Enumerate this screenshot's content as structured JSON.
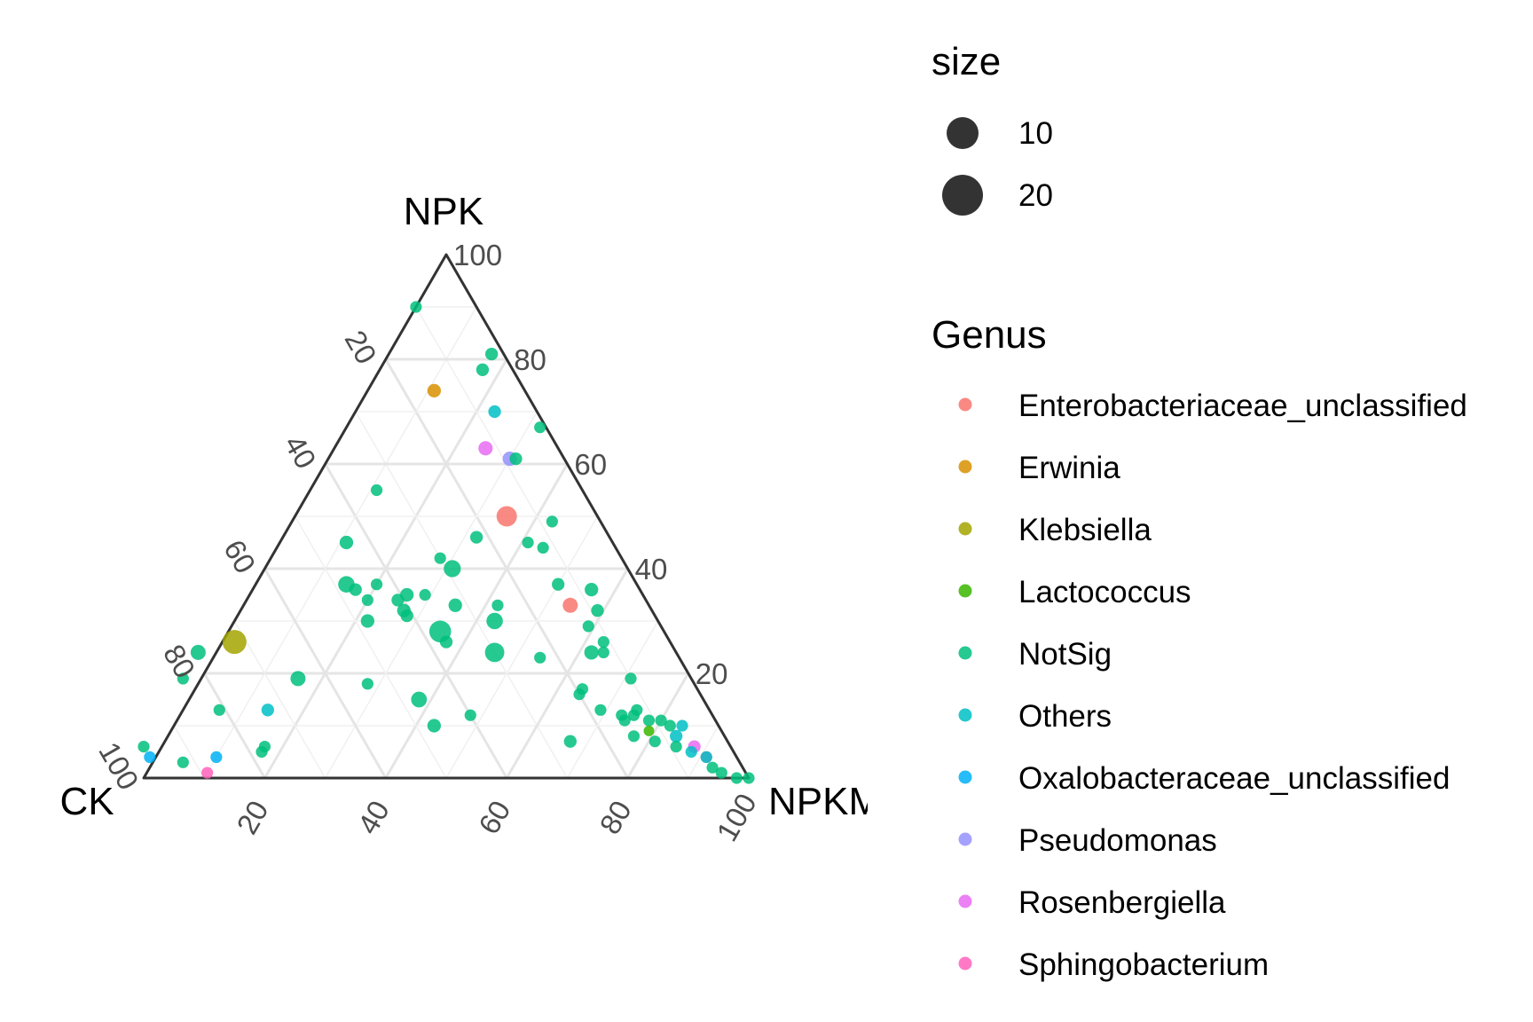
{
  "chart_data": {
    "type": "scatter",
    "subtype": "ternary",
    "axes": {
      "top": "NPK",
      "left": "CK",
      "right": "NPKM"
    },
    "axis_range": [
      0,
      100
    ],
    "ticks": [
      20,
      40,
      60,
      80,
      100
    ],
    "grid": true,
    "legend": {
      "position": "right",
      "size_title": "size",
      "size_entries": [
        {
          "label": "10",
          "value": 10
        },
        {
          "label": "20",
          "value": 20
        }
      ],
      "color_title": "Genus",
      "genera": [
        {
          "name": "Enterobacteriaceae_unclassified",
          "color": "#F8766D"
        },
        {
          "name": "Erwinia",
          "color": "#D89000"
        },
        {
          "name": "Klebsiella",
          "color": "#A3A500"
        },
        {
          "name": "Lactococcus",
          "color": "#39B600"
        },
        {
          "name": "NotSig",
          "color": "#00BF7D"
        },
        {
          "name": "Others",
          "color": "#00BFC4"
        },
        {
          "name": "Oxalobacteraceae_unclassified",
          "color": "#00B0F6"
        },
        {
          "name": "Pseudomonas",
          "color": "#9590FF"
        },
        {
          "name": "Rosenbergiella",
          "color": "#E76BF3"
        },
        {
          "name": "Sphingobacterium",
          "color": "#FF62BC"
        }
      ]
    },
    "points": [
      {
        "genus": "NotSig",
        "ck": 10,
        "npk": 90,
        "npkm": 0,
        "size": 4
      },
      {
        "genus": "NotSig",
        "ck": 2,
        "npk": 81,
        "npkm": 17,
        "size": 5
      },
      {
        "genus": "NotSig",
        "ck": 5,
        "npk": 78,
        "npkm": 17,
        "size": 5
      },
      {
        "genus": "Erwinia",
        "ck": 15,
        "npk": 74,
        "npkm": 11,
        "size": 6
      },
      {
        "genus": "Others",
        "ck": 7,
        "npk": 70,
        "npkm": 23,
        "size": 5
      },
      {
        "genus": "NotSig",
        "ck": 1,
        "npk": 67,
        "npkm": 32,
        "size": 4
      },
      {
        "genus": "Rosenbergiella",
        "ck": 12,
        "npk": 63,
        "npkm": 25,
        "size": 7
      },
      {
        "genus": "Pseudomonas",
        "ck": 9,
        "npk": 61,
        "npkm": 30,
        "size": 7
      },
      {
        "genus": "NotSig",
        "ck": 8,
        "npk": 61,
        "npkm": 31,
        "size": 5
      },
      {
        "genus": "NotSig",
        "ck": 34,
        "npk": 55,
        "npkm": 11,
        "size": 4
      },
      {
        "genus": "Enterobacteriaceae_unclassified",
        "ck": 15,
        "npk": 50,
        "npkm": 35,
        "size": 17
      },
      {
        "genus": "NotSig",
        "ck": 8,
        "npk": 49,
        "npkm": 43,
        "size": 4
      },
      {
        "genus": "NotSig",
        "ck": 22,
        "npk": 46,
        "npkm": 32,
        "size": 5
      },
      {
        "genus": "NotSig",
        "ck": 44,
        "npk": 45,
        "npkm": 11,
        "size": 6
      },
      {
        "genus": "NotSig",
        "ck": 14,
        "npk": 45,
        "npkm": 41,
        "size": 4
      },
      {
        "genus": "NotSig",
        "ck": 12,
        "npk": 44,
        "npkm": 44,
        "size": 4
      },
      {
        "genus": "NotSig",
        "ck": 30,
        "npk": 42,
        "npkm": 28,
        "size": 4
      },
      {
        "genus": "NotSig",
        "ck": 29,
        "npk": 40,
        "npkm": 31,
        "size": 11
      },
      {
        "genus": "NotSig",
        "ck": 13,
        "npk": 37,
        "npkm": 50,
        "size": 5
      },
      {
        "genus": "NotSig",
        "ck": 48,
        "npk": 37,
        "npkm": 15,
        "size": 10
      },
      {
        "genus": "NotSig",
        "ck": 43,
        "npk": 37,
        "npkm": 20,
        "size": 4
      },
      {
        "genus": "NotSig",
        "ck": 8,
        "npk": 36,
        "npkm": 56,
        "size": 6
      },
      {
        "genus": "NotSig",
        "ck": 47,
        "npk": 36,
        "npkm": 17,
        "size": 5
      },
      {
        "genus": "NotSig",
        "ck": 39,
        "npk": 35,
        "npkm": 26,
        "size": 6
      },
      {
        "genus": "NotSig",
        "ck": 36,
        "npk": 35,
        "npkm": 29,
        "size": 4
      },
      {
        "genus": "NotSig",
        "ck": 41,
        "npk": 34,
        "npkm": 25,
        "size": 5
      },
      {
        "genus": "NotSig",
        "ck": 46,
        "npk": 34,
        "npkm": 20,
        "size": 4
      },
      {
        "genus": "NotSig",
        "ck": 32,
        "npk": 33,
        "npkm": 35,
        "size": 6
      },
      {
        "genus": "NotSig",
        "ck": 25,
        "npk": 33,
        "npkm": 42,
        "size": 4
      },
      {
        "genus": "NotSig",
        "ck": 41,
        "npk": 32,
        "npkm": 27,
        "size": 6
      },
      {
        "genus": "NotSig",
        "ck": 41,
        "npk": 31,
        "npkm": 28,
        "size": 5
      },
      {
        "genus": "Enterobacteriaceae_unclassified",
        "ck": 13,
        "npk": 33,
        "npkm": 54,
        "size": 8
      },
      {
        "genus": "NotSig",
        "ck": 9,
        "npk": 32,
        "npkm": 59,
        "size": 5
      },
      {
        "genus": "NotSig",
        "ck": 48,
        "npk": 30,
        "npkm": 22,
        "size": 6
      },
      {
        "genus": "NotSig",
        "ck": 37,
        "npk": 28,
        "npkm": 35,
        "size": 20
      },
      {
        "genus": "NotSig",
        "ck": 27,
        "npk": 30,
        "npkm": 43,
        "size": 10
      },
      {
        "genus": "Klebsiella",
        "ck": 72,
        "npk": 26,
        "npkm": 2,
        "size": 25
      },
      {
        "genus": "NotSig",
        "ck": 37,
        "npk": 26,
        "npkm": 37,
        "size": 5
      },
      {
        "genus": "NotSig",
        "ck": 12,
        "npk": 29,
        "npkm": 59,
        "size": 4
      },
      {
        "genus": "NotSig",
        "ck": 11,
        "npk": 26,
        "npkm": 63,
        "size": 4
      },
      {
        "genus": "NotSig",
        "ck": 14,
        "npk": 24,
        "npkm": 62,
        "size": 7
      },
      {
        "genus": "NotSig",
        "ck": 12,
        "npk": 24,
        "npkm": 64,
        "size": 4
      },
      {
        "genus": "NotSig",
        "ck": 79,
        "npk": 24,
        "npkm": -3,
        "size": 8
      },
      {
        "genus": "NotSig",
        "ck": 30,
        "npk": 24,
        "npkm": 46,
        "size": 15
      },
      {
        "genus": "NotSig",
        "ck": 23,
        "npk": 23,
        "npkm": 54,
        "size": 4
      },
      {
        "genus": "NotSig",
        "ck": 65,
        "npk": 19,
        "npkm": 16,
        "size": 8
      },
      {
        "genus": "NotSig",
        "ck": 84,
        "npk": 19,
        "npkm": -3,
        "size": 4
      },
      {
        "genus": "NotSig",
        "ck": 10,
        "npk": 19,
        "npkm": 71,
        "size": 4
      },
      {
        "genus": "NotSig",
        "ck": 54,
        "npk": 18,
        "npkm": 28,
        "size": 4
      },
      {
        "genus": "NotSig",
        "ck": 19,
        "npk": 17,
        "npkm": 64,
        "size": 4
      },
      {
        "genus": "NotSig",
        "ck": 47,
        "npk": 15,
        "npkm": 38,
        "size": 9
      },
      {
        "genus": "NotSig",
        "ck": 20,
        "npk": 16,
        "npkm": 64,
        "size": 4
      },
      {
        "genus": "NotSig",
        "ck": 81,
        "npk": 13,
        "npkm": 6,
        "size": 4
      },
      {
        "genus": "Others",
        "ck": 73,
        "npk": 13,
        "npkm": 14,
        "size": 5
      },
      {
        "genus": "NotSig",
        "ck": 40,
        "npk": 12,
        "npkm": 48,
        "size": 4
      },
      {
        "genus": "NotSig",
        "ck": 18,
        "npk": 13,
        "npkm": 69,
        "size": 4
      },
      {
        "genus": "NotSig",
        "ck": 15,
        "npk": 12,
        "npkm": 73,
        "size": 4
      },
      {
        "genus": "NotSig",
        "ck": 13,
        "npk": 12,
        "npkm": 75,
        "size": 4
      },
      {
        "genus": "NotSig",
        "ck": 12,
        "npk": 13,
        "npkm": 75,
        "size": 4
      },
      {
        "genus": "NotSig",
        "ck": 47,
        "npk": 10,
        "npkm": 43,
        "size": 6
      },
      {
        "genus": "NotSig",
        "ck": 15,
        "npk": 11,
        "npkm": 74,
        "size": 4
      },
      {
        "genus": "NotSig",
        "ck": 11,
        "npk": 11,
        "npkm": 78,
        "size": 4
      },
      {
        "genus": "NotSig",
        "ck": 9,
        "npk": 11,
        "npkm": 80,
        "size": 4
      },
      {
        "genus": "NotSig",
        "ck": 8,
        "npk": 10,
        "npkm": 82,
        "size": 4
      },
      {
        "genus": "Others",
        "ck": 6,
        "npk": 10,
        "npkm": 84,
        "size": 4
      },
      {
        "genus": "Lactococcus",
        "ck": 12,
        "npk": 9,
        "npkm": 79,
        "size": 3
      },
      {
        "genus": "NotSig",
        "ck": 26,
        "npk": 7,
        "npkm": 67,
        "size": 5
      },
      {
        "genus": "NotSig",
        "ck": 15,
        "npk": 8,
        "npkm": 77,
        "size": 4
      },
      {
        "genus": "Others",
        "ck": 8,
        "npk": 8,
        "npkm": 84,
        "size": 5
      },
      {
        "genus": "NotSig",
        "ck": 12,
        "npk": 7,
        "npkm": 81,
        "size": 4
      },
      {
        "genus": "NotSig",
        "ck": 9,
        "npk": 6,
        "npkm": 85,
        "size": 4
      },
      {
        "genus": "NotSig",
        "ck": 97,
        "npk": 6,
        "npkm": -3,
        "size": 4
      },
      {
        "genus": "NotSig",
        "ck": 78,
        "npk": 5,
        "npkm": 17,
        "size": 4
      },
      {
        "genus": "NotSig",
        "ck": 77,
        "npk": 6,
        "npkm": 17,
        "size": 4
      },
      {
        "genus": "Rosenbergiella",
        "ck": 6,
        "npk": 6,
        "npkm": 88,
        "size": 5
      },
      {
        "genus": "Others",
        "ck": 7,
        "npk": 5,
        "npkm": 88,
        "size": 4
      },
      {
        "genus": "Sphingobacterium",
        "ck": 5,
        "npk": 4,
        "npkm": 91,
        "size": 4
      },
      {
        "genus": "Others",
        "ck": 5,
        "npk": 4,
        "npkm": 91,
        "size": 4
      },
      {
        "genus": "Oxalobacteraceae_unclassified",
        "ck": 97,
        "npk": 4,
        "npkm": -1,
        "size": 4
      },
      {
        "genus": "NotSig",
        "ck": 92,
        "npk": 3,
        "npkm": 5,
        "size": 4
      },
      {
        "genus": "Oxalobacteraceae_unclassified",
        "ck": 86,
        "npk": 4,
        "npkm": 10,
        "size": 4
      },
      {
        "genus": "NotSig",
        "ck": 5,
        "npk": 2,
        "npkm": 93,
        "size": 4
      },
      {
        "genus": "Sphingobacterium",
        "ck": 89,
        "npk": 1,
        "npkm": 10,
        "size": 4
      },
      {
        "genus": "NotSig",
        "ck": 4,
        "npk": 1,
        "npkm": 95,
        "size": 4
      },
      {
        "genus": "NotSig",
        "ck": 2,
        "npk": 0,
        "npkm": 98,
        "size": 4
      },
      {
        "genus": "NotSig",
        "ck": 0,
        "npk": 0,
        "npkm": 100,
        "size": 4
      }
    ]
  }
}
